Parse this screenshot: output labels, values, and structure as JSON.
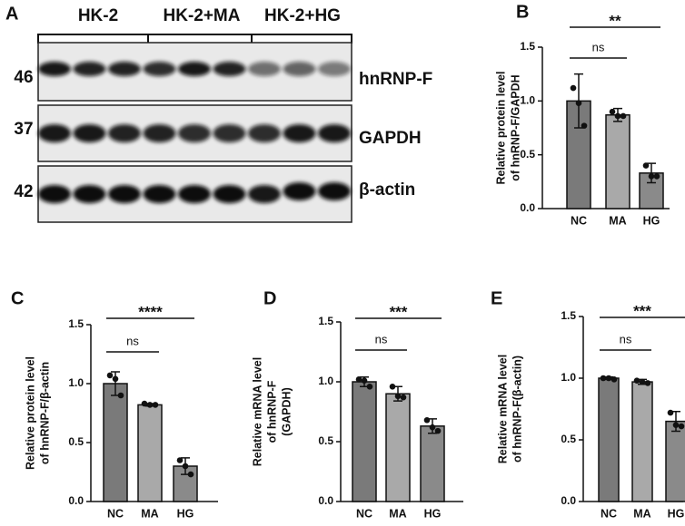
{
  "blot": {
    "panel": "A",
    "groups": [
      "HK-2",
      "HK-2+MA",
      "HK-2+HG"
    ],
    "markers": [
      "46",
      "37",
      "42"
    ],
    "proteins": [
      "hnRNP-F",
      "GAPDH",
      "β-actin"
    ]
  },
  "chart_data": [
    {
      "type": "bar",
      "panel": "B",
      "ylabel": [
        "Relative protein level",
        "of hnRNP-F/GAPDH"
      ],
      "categories": [
        "NC",
        "MA",
        "HG"
      ],
      "values": [
        1.0,
        0.87,
        0.33
      ],
      "errors": [
        0.25,
        0.06,
        0.09
      ],
      "points": [
        [
          1.12,
          0.98,
          0.77
        ],
        [
          0.9,
          0.86,
          0.86
        ],
        [
          0.4,
          0.3,
          0.3
        ]
      ],
      "colors": [
        "#7a7a7a",
        "#a9a9a9",
        "#8a8a8a"
      ],
      "ylim": [
        0,
        1.5
      ],
      "yticks": [
        {
          "value": 0,
          "label": "0.0"
        },
        {
          "value": 0.5,
          "label": "0.5"
        },
        {
          "value": 1,
          "label": "1.0"
        },
        {
          "value": 1.5,
          "label": "1.5"
        }
      ],
      "annotations": [
        "ns",
        "**"
      ]
    },
    {
      "type": "bar",
      "panel": "C",
      "ylabel": [
        "Relative protein level",
        "of hnRNP-F/β-actin"
      ],
      "categories": [
        "NC",
        "MA",
        "HG"
      ],
      "values": [
        1.0,
        0.82,
        0.3
      ],
      "errors": [
        0.1,
        0.01,
        0.07
      ],
      "points": [
        [
          1.07,
          1.04,
          0.9
        ],
        [
          0.83,
          0.82,
          0.82
        ],
        [
          0.35,
          0.3,
          0.23
        ]
      ],
      "colors": [
        "#7a7a7a",
        "#a9a9a9",
        "#8a8a8a"
      ],
      "ylim": [
        0,
        1.5
      ],
      "yticks": [
        {
          "value": 0,
          "label": "0.0"
        },
        {
          "value": 0.5,
          "label": "0.5"
        },
        {
          "value": 1,
          "label": "1.0"
        },
        {
          "value": 1.5,
          "label": "1.5"
        }
      ],
      "annotations": [
        "ns",
        "****"
      ]
    },
    {
      "type": "bar",
      "panel": "D",
      "ylabel": [
        "Relative mRNA level",
        "of hnRNP-F",
        "(GAPDH)"
      ],
      "categories": [
        "NC",
        "MA",
        "HG"
      ],
      "values": [
        1.0,
        0.9,
        0.63
      ],
      "errors": [
        0.04,
        0.06,
        0.06
      ],
      "points": [
        [
          1.02,
          1.01,
          0.96
        ],
        [
          0.96,
          0.88,
          0.87
        ],
        [
          0.68,
          0.62,
          0.59
        ]
      ],
      "colors": [
        "#7a7a7a",
        "#a9a9a9",
        "#8a8a8a"
      ],
      "ylim": [
        0,
        1.5
      ],
      "yticks": [
        {
          "value": 0,
          "label": "0.0"
        },
        {
          "value": 0.5,
          "label": "0.5"
        },
        {
          "value": 1,
          "label": "1.0"
        },
        {
          "value": 1.5,
          "label": "1.5"
        }
      ],
      "annotations": [
        "ns",
        "***"
      ]
    },
    {
      "type": "bar",
      "panel": "E",
      "ylabel": [
        "Relative mRNA level",
        "of hnRNP-F(β-actin)"
      ],
      "categories": [
        "NC",
        "MA",
        "HG"
      ],
      "values": [
        1.0,
        0.97,
        0.65
      ],
      "errors": [
        0.01,
        0.02,
        0.08
      ],
      "points": [
        [
          1.0,
          1.0,
          0.99
        ],
        [
          0.98,
          0.97,
          0.96
        ],
        [
          0.72,
          0.62,
          0.61
        ]
      ],
      "colors": [
        "#7a7a7a",
        "#a9a9a9",
        "#8a8a8a"
      ],
      "ylim": [
        0,
        1.5
      ],
      "yticks": [
        {
          "value": 0,
          "label": "0.0"
        },
        {
          "value": 0.5,
          "label": "0.5"
        },
        {
          "value": 1,
          "label": "1.0"
        },
        {
          "value": 1.5,
          "label": "1.5"
        }
      ],
      "annotations": [
        "ns",
        "***"
      ]
    }
  ]
}
